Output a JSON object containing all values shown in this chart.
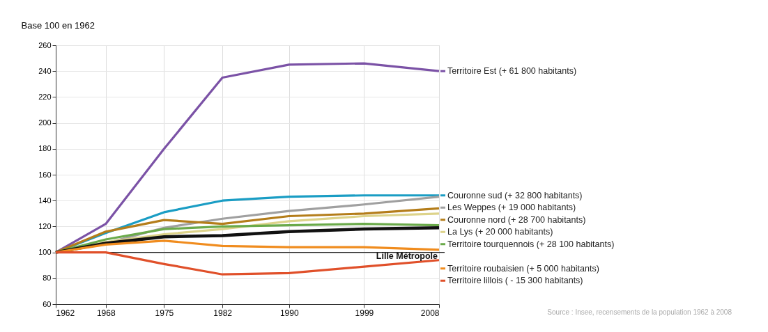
{
  "chart_data": {
    "type": "line",
    "ylabel": "Base 100 en 1962",
    "x": [
      1962,
      1968,
      1975,
      1982,
      1990,
      1999,
      2008
    ],
    "xlim": [
      1962,
      2008
    ],
    "xticks": [
      1962,
      1968,
      1975,
      1982,
      1990,
      1999,
      2008
    ],
    "ylim": [
      60,
      260
    ],
    "yticks": [
      60,
      80,
      100,
      120,
      140,
      160,
      180,
      200,
      220,
      240,
      260
    ],
    "grid": true,
    "legend": "right",
    "marker": "none",
    "line_style": "solid",
    "ref_lines": [
      {
        "axis": "y",
        "value": 100,
        "color": "#222222"
      }
    ],
    "series": [
      {
        "name": "Territoire Est (+ 61 800 habitants)",
        "color": "#7b52a6",
        "values": [
          100,
          122,
          180,
          235,
          245,
          246,
          240
        ]
      },
      {
        "name": "Couronne sud (+ 32 800 habitants)",
        "color": "#1a9dc4",
        "values": [
          100,
          115,
          131,
          140,
          143,
          144,
          144
        ]
      },
      {
        "name": "Les Weppes (+ 19 000 habitants)",
        "color": "#a0a0a0",
        "values": [
          100,
          107,
          119,
          126,
          132,
          137,
          143
        ]
      },
      {
        "name": "Couronne nord (+ 28 700 habitants)",
        "color": "#b47d1a",
        "values": [
          100,
          116,
          125,
          122,
          128,
          130,
          134
        ]
      },
      {
        "name": "La Lys (+ 20 000 habitants)",
        "color": "#ddd38a",
        "values": [
          100,
          108,
          114,
          118,
          124,
          128,
          130
        ]
      },
      {
        "name": "Territoire tourquennois (+ 28 100 habitants)",
        "color": "#6aaa4a",
        "values": [
          100,
          110,
          118,
          120,
          121,
          122,
          121
        ]
      },
      {
        "name": "Lille Métropole",
        "color": "#111111",
        "values": [
          100,
          107,
          112,
          113,
          116,
          118,
          119
        ]
      },
      {
        "name": "Territoire roubaisien (+ 5 000 habitants)",
        "color": "#f08c1e",
        "values": [
          100,
          106,
          109,
          105,
          104,
          104,
          102
        ]
      },
      {
        "name": "Territoire lillois ( - 15 300 habitants)",
        "color": "#e0502a",
        "values": [
          100,
          100,
          91,
          83,
          84,
          89,
          94
        ]
      }
    ],
    "annotations": [
      "Source : Insee, recensements de la population 1962 à 2008"
    ]
  }
}
